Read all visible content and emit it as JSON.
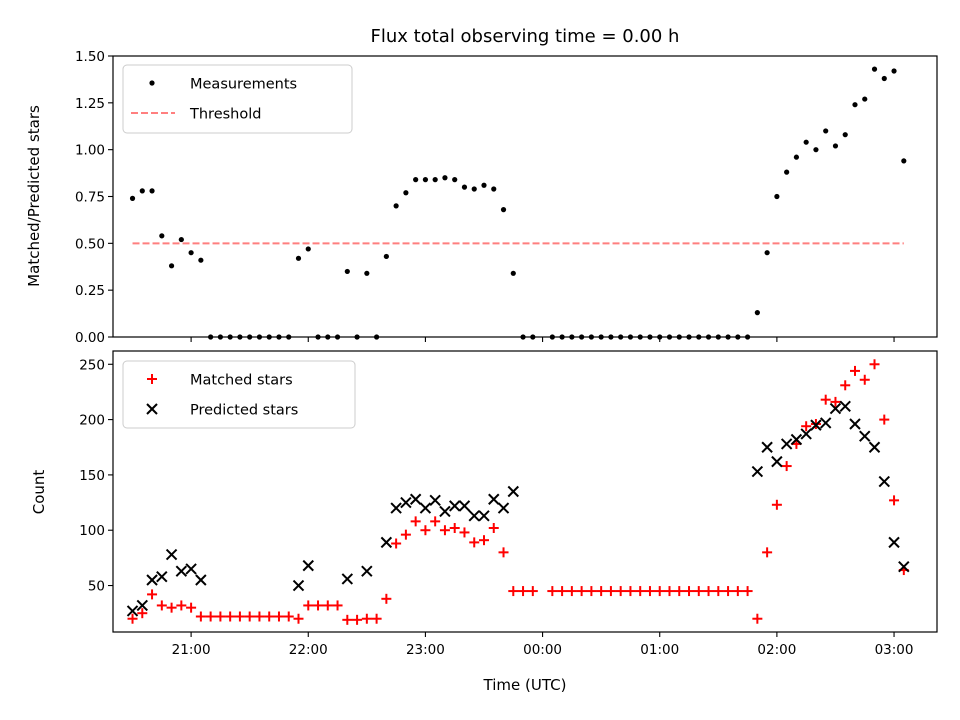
{
  "chart_data": [
    {
      "type": "scatter",
      "title": "Flux total observing time = 0.00 h",
      "xlabel": "",
      "ylabel": "Matched/Predicted stars",
      "xlim": [
        "20:20",
        "03:22"
      ],
      "ylim": [
        0,
        1.5
      ],
      "yticks": [
        "0.00",
        "0.25",
        "0.50",
        "0.75",
        "1.00",
        "1.25",
        "1.50"
      ],
      "xtick_labels_visible": false,
      "grid": false,
      "legend": {
        "placement": "upper-left",
        "entries": [
          "Measurements",
          "Threshold"
        ]
      },
      "colors": {
        "measurements": "#000000",
        "threshold": "#ff7f7f"
      },
      "series": [
        {
          "name": "Measurements",
          "marker": "dot",
          "points": [
            [
              "20:30",
              0.74
            ],
            [
              "20:35",
              0.78
            ],
            [
              "20:40",
              0.78
            ],
            [
              "20:45",
              0.54
            ],
            [
              "20:50",
              0.38
            ],
            [
              "20:55",
              0.52
            ],
            [
              "21:00",
              0.45
            ],
            [
              "21:05",
              0.41
            ],
            [
              "21:10",
              0.0
            ],
            [
              "21:15",
              0.0
            ],
            [
              "21:20",
              0.0
            ],
            [
              "21:25",
              0.0
            ],
            [
              "21:30",
              0.0
            ],
            [
              "21:35",
              0.0
            ],
            [
              "21:40",
              0.0
            ],
            [
              "21:45",
              0.0
            ],
            [
              "21:50",
              0.0
            ],
            [
              "21:55",
              0.42
            ],
            [
              "22:00",
              0.47
            ],
            [
              "22:05",
              0.0
            ],
            [
              "22:10",
              0.0
            ],
            [
              "22:15",
              0.0
            ],
            [
              "22:20",
              0.35
            ],
            [
              "22:25",
              0.0
            ],
            [
              "22:30",
              0.34
            ],
            [
              "22:35",
              0.0
            ],
            [
              "22:40",
              0.43
            ],
            [
              "22:45",
              0.7
            ],
            [
              "22:50",
              0.77
            ],
            [
              "22:55",
              0.84
            ],
            [
              "23:00",
              0.84
            ],
            [
              "23:05",
              0.84
            ],
            [
              "23:10",
              0.85
            ],
            [
              "23:15",
              0.84
            ],
            [
              "23:20",
              0.8
            ],
            [
              "23:25",
              0.79
            ],
            [
              "23:30",
              0.81
            ],
            [
              "23:35",
              0.79
            ],
            [
              "23:40",
              0.68
            ],
            [
              "23:45",
              0.34
            ],
            [
              "23:50",
              0.0
            ],
            [
              "23:55",
              0.0
            ],
            [
              "00:05",
              0.0
            ],
            [
              "00:10",
              0.0
            ],
            [
              "00:15",
              0.0
            ],
            [
              "00:20",
              0.0
            ],
            [
              "00:25",
              0.0
            ],
            [
              "00:30",
              0.0
            ],
            [
              "00:35",
              0.0
            ],
            [
              "00:40",
              0.0
            ],
            [
              "00:45",
              0.0
            ],
            [
              "00:50",
              0.0
            ],
            [
              "00:55",
              0.0
            ],
            [
              "01:00",
              0.0
            ],
            [
              "01:05",
              0.0
            ],
            [
              "01:10",
              0.0
            ],
            [
              "01:15",
              0.0
            ],
            [
              "01:20",
              0.0
            ],
            [
              "01:25",
              0.0
            ],
            [
              "01:30",
              0.0
            ],
            [
              "01:35",
              0.0
            ],
            [
              "01:40",
              0.0
            ],
            [
              "01:45",
              0.0
            ],
            [
              "01:50",
              0.13
            ],
            [
              "01:55",
              0.45
            ],
            [
              "02:00",
              0.75
            ],
            [
              "02:05",
              0.88
            ],
            [
              "02:10",
              0.96
            ],
            [
              "02:15",
              1.04
            ],
            [
              "02:20",
              1.0
            ],
            [
              "02:25",
              1.1
            ],
            [
              "02:30",
              1.02
            ],
            [
              "02:35",
              1.08
            ],
            [
              "02:40",
              1.24
            ],
            [
              "02:45",
              1.27
            ],
            [
              "02:50",
              1.43
            ],
            [
              "02:55",
              1.38
            ],
            [
              "03:00",
              1.42
            ],
            [
              "03:05",
              0.94
            ]
          ]
        },
        {
          "name": "Threshold",
          "marker": "dashed-line",
          "points": [
            [
              "20:30",
              0.5
            ],
            [
              "03:05",
              0.5
            ]
          ]
        }
      ]
    },
    {
      "type": "scatter",
      "title": "",
      "xlabel": "Time (UTC)",
      "ylabel": "Count",
      "xlim": [
        "20:20",
        "03:22"
      ],
      "ylim": [
        8,
        262
      ],
      "yticks": [
        "50",
        "100",
        "150",
        "200",
        "250"
      ],
      "xticks": [
        "21:00",
        "22:00",
        "23:00",
        "00:00",
        "01:00",
        "02:00",
        "03:00"
      ],
      "grid": false,
      "legend": {
        "placement": "upper-left",
        "entries": [
          "Matched stars",
          "Predicted stars"
        ]
      },
      "colors": {
        "matched": "#ff0000",
        "predicted": "#000000"
      },
      "series": [
        {
          "name": "Matched stars",
          "marker": "plus",
          "points": [
            [
              "20:30",
              20
            ],
            [
              "20:35",
              25
            ],
            [
              "20:40",
              42
            ],
            [
              "20:45",
              32
            ],
            [
              "20:50",
              30
            ],
            [
              "20:55",
              32
            ],
            [
              "21:00",
              30
            ],
            [
              "21:05",
              22
            ],
            [
              "21:10",
              22
            ],
            [
              "21:15",
              22
            ],
            [
              "21:20",
              22
            ],
            [
              "21:25",
              22
            ],
            [
              "21:30",
              22
            ],
            [
              "21:35",
              22
            ],
            [
              "21:40",
              22
            ],
            [
              "21:45",
              22
            ],
            [
              "21:50",
              22
            ],
            [
              "21:55",
              20
            ],
            [
              "22:00",
              32
            ],
            [
              "22:05",
              32
            ],
            [
              "22:10",
              32
            ],
            [
              "22:15",
              32
            ],
            [
              "22:20",
              19
            ],
            [
              "22:25",
              19
            ],
            [
              "22:30",
              20
            ],
            [
              "22:35",
              20
            ],
            [
              "22:40",
              38
            ],
            [
              "22:45",
              88
            ],
            [
              "22:50",
              96
            ],
            [
              "22:55",
              108
            ],
            [
              "23:00",
              100
            ],
            [
              "23:05",
              108
            ],
            [
              "23:10",
              100
            ],
            [
              "23:15",
              102
            ],
            [
              "23:20",
              98
            ],
            [
              "23:25",
              89
            ],
            [
              "23:30",
              91
            ],
            [
              "23:35",
              102
            ],
            [
              "23:40",
              80
            ],
            [
              "23:45",
              45
            ],
            [
              "23:50",
              45
            ],
            [
              "23:55",
              45
            ],
            [
              "00:05",
              45
            ],
            [
              "00:10",
              45
            ],
            [
              "00:15",
              45
            ],
            [
              "00:20",
              45
            ],
            [
              "00:25",
              45
            ],
            [
              "00:30",
              45
            ],
            [
              "00:35",
              45
            ],
            [
              "00:40",
              45
            ],
            [
              "00:45",
              45
            ],
            [
              "00:50",
              45
            ],
            [
              "00:55",
              45
            ],
            [
              "01:00",
              45
            ],
            [
              "01:05",
              45
            ],
            [
              "01:10",
              45
            ],
            [
              "01:15",
              45
            ],
            [
              "01:20",
              45
            ],
            [
              "01:25",
              45
            ],
            [
              "01:30",
              45
            ],
            [
              "01:35",
              45
            ],
            [
              "01:40",
              45
            ],
            [
              "01:45",
              45
            ],
            [
              "01:50",
              20
            ],
            [
              "01:55",
              80
            ],
            [
              "02:00",
              123
            ],
            [
              "02:05",
              158
            ],
            [
              "02:10",
              178
            ],
            [
              "02:15",
              194
            ],
            [
              "02:20",
              196
            ],
            [
              "02:25",
              218
            ],
            [
              "02:30",
              216
            ],
            [
              "02:35",
              231
            ],
            [
              "02:40",
              244
            ],
            [
              "02:45",
              236
            ],
            [
              "02:50",
              250
            ],
            [
              "02:55",
              200
            ],
            [
              "03:00",
              127
            ],
            [
              "03:05",
              64
            ]
          ]
        },
        {
          "name": "Predicted stars",
          "marker": "x",
          "points": [
            [
              "20:30",
              27
            ],
            [
              "20:35",
              32
            ],
            [
              "20:40",
              55
            ],
            [
              "20:45",
              58
            ],
            [
              "20:50",
              78
            ],
            [
              "20:55",
              63
            ],
            [
              "21:00",
              65
            ],
            [
              "21:05",
              55
            ],
            [
              "21:55",
              50
            ],
            [
              "22:00",
              68
            ],
            [
              "22:20",
              56
            ],
            [
              "22:30",
              63
            ],
            [
              "22:40",
              89
            ],
            [
              "22:45",
              120
            ],
            [
              "22:50",
              125
            ],
            [
              "22:55",
              128
            ],
            [
              "23:00",
              120
            ],
            [
              "23:05",
              127
            ],
            [
              "23:10",
              117
            ],
            [
              "23:15",
              122
            ],
            [
              "23:20",
              122
            ],
            [
              "23:25",
              113
            ],
            [
              "23:30",
              113
            ],
            [
              "23:35",
              128
            ],
            [
              "23:40",
              120
            ],
            [
              "23:45",
              135
            ],
            [
              "01:50",
              153
            ],
            [
              "01:55",
              175
            ],
            [
              "02:00",
              162
            ],
            [
              "02:05",
              178
            ],
            [
              "02:10",
              182
            ],
            [
              "02:15",
              187
            ],
            [
              "02:20",
              195
            ],
            [
              "02:25",
              197
            ],
            [
              "02:30",
              210
            ],
            [
              "02:35",
              212
            ],
            [
              "02:40",
              196
            ],
            [
              "02:45",
              185
            ],
            [
              "02:50",
              175
            ],
            [
              "02:55",
              144
            ],
            [
              "03:00",
              89
            ],
            [
              "03:05",
              67
            ]
          ]
        }
      ]
    }
  ]
}
